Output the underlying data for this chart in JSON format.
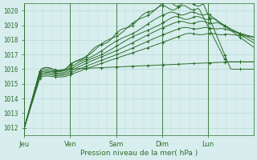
{
  "bg_color": "#d8eeee",
  "grid_color": "#b8d8d8",
  "line_color": "#2d6e2d",
  "xlabel": "Pression niveau de la mer( hPa )",
  "xlabel_color": "#2d6e2d",
  "tick_color": "#2d6e2d",
  "ytick_color": "#2d6e2d",
  "ylim": [
    1011.5,
    1020.5
  ],
  "yticks": [
    1012,
    1013,
    1014,
    1015,
    1016,
    1017,
    1018,
    1019,
    1020
  ],
  "day_labels": [
    "Jeu",
    "Ven",
    "Sam",
    "Dim",
    "Lun"
  ],
  "day_positions": [
    0,
    0.2,
    0.4,
    0.6,
    0.8
  ],
  "xlim": [
    0.0,
    1.0
  ],
  "n_points": 120
}
